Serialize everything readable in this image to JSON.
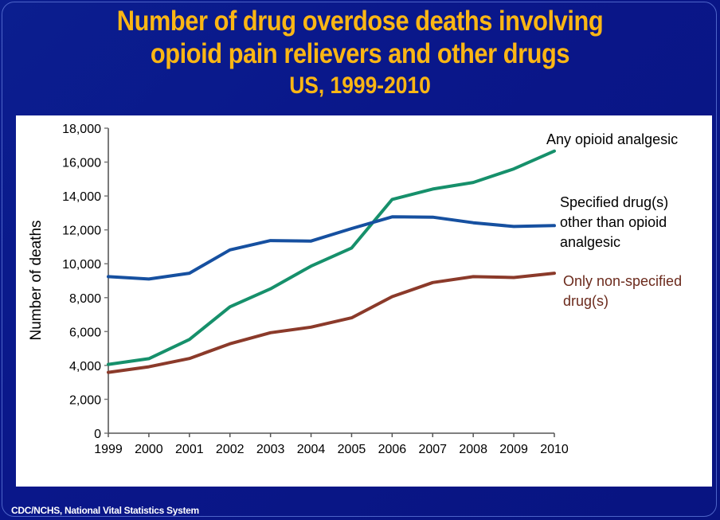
{
  "slide": {
    "title_line1": "Number of drug overdose deaths involving",
    "title_line2": "opioid pain relievers and other drugs",
    "subtitle": "US, 1999-2010",
    "source": "CDC/NCHS, National Vital Statistics System",
    "colors": {
      "background": "#0a1a86",
      "title": "#fbb614",
      "panel": "#ffffff"
    }
  },
  "chart_data": {
    "type": "line",
    "title": "Number of drug overdose deaths involving opioid pain relievers and other drugs, US, 1999-2010",
    "xlabel": "",
    "ylabel": "Number of deaths",
    "x": [
      "1999",
      "2000",
      "2001",
      "2002",
      "2003",
      "2004",
      "2005",
      "2006",
      "2007",
      "2008",
      "2009",
      "2010"
    ],
    "ylim": [
      0,
      18000
    ],
    "yticks": [
      0,
      2000,
      4000,
      6000,
      8000,
      10000,
      12000,
      14000,
      16000,
      18000
    ],
    "ytick_labels": [
      "0",
      "2,000",
      "4,000",
      "6,000",
      "8,000",
      "10,000",
      "12,000",
      "14,000",
      "16,000",
      "18,000"
    ],
    "grid": false,
    "legend": "inline labels at right end of lines",
    "series": [
      {
        "name": "Any opioid analgesic",
        "label_lines": [
          "Any opioid analgesic"
        ],
        "color": "#16906b",
        "label_color": "#000000",
        "values": [
          4060,
          4400,
          5530,
          7460,
          8520,
          9860,
          10930,
          13800,
          14410,
          14800,
          15600,
          16650
        ]
      },
      {
        "name": "Specified drug(s) other than opioid analgesic",
        "label_lines": [
          "Specified drug(s)",
          "other than opioid",
          "analgesic"
        ],
        "color": "#1650a0",
        "label_color": "#000000",
        "values": [
          9240,
          9100,
          9440,
          10820,
          11370,
          11340,
          12080,
          12770,
          12750,
          12420,
          12200,
          12250
        ]
      },
      {
        "name": "Only non-specified drug(s)",
        "label_lines": [
          "Only non-specified",
          "drug(s)"
        ],
        "color": "#8b3a2a",
        "label_color": "#6b2a1c",
        "values": [
          3590,
          3920,
          4410,
          5280,
          5930,
          6260,
          6810,
          8060,
          8890,
          9240,
          9190,
          9440
        ]
      }
    ]
  }
}
